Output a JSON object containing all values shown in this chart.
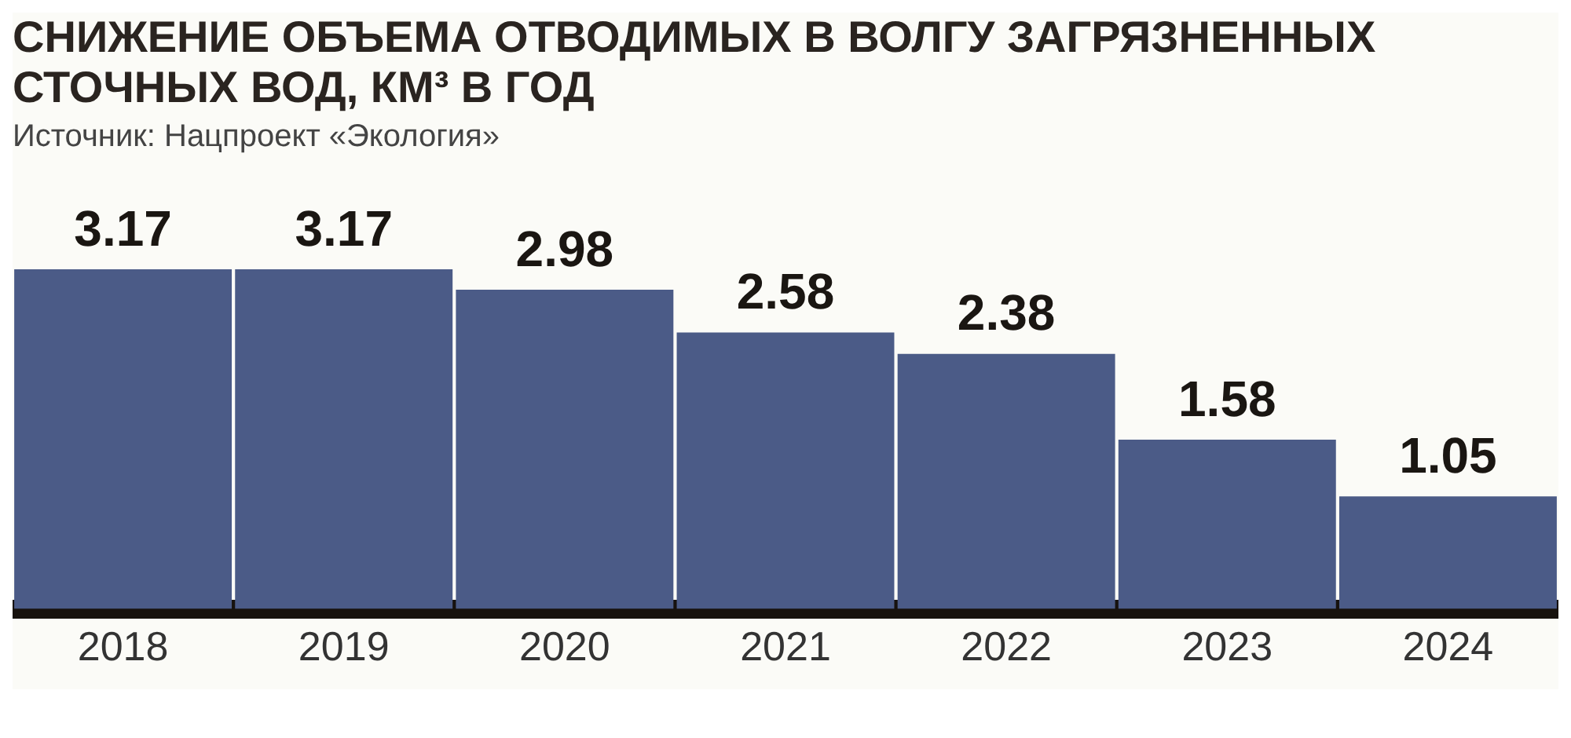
{
  "chart_data": {
    "type": "bar",
    "title": "СНИЖЕНИЕ ОБЪЕМА ОТВОДИМЫХ В ВОЛГУ ЗАГРЯЗНЕННЫХ СТОЧНЫХ ВОД, КМ³ В ГОД",
    "annotations": [
      "Источник: Нацпроект «Экология»"
    ],
    "categories": [
      "2018",
      "2019",
      "2020",
      "2021",
      "2022",
      "2023",
      "2024"
    ],
    "values": [
      3.17,
      3.17,
      2.98,
      2.58,
      2.38,
      1.58,
      1.05
    ],
    "color": "#4b5b87",
    "data_labels": true,
    "grid": false,
    "legend": false
  }
}
